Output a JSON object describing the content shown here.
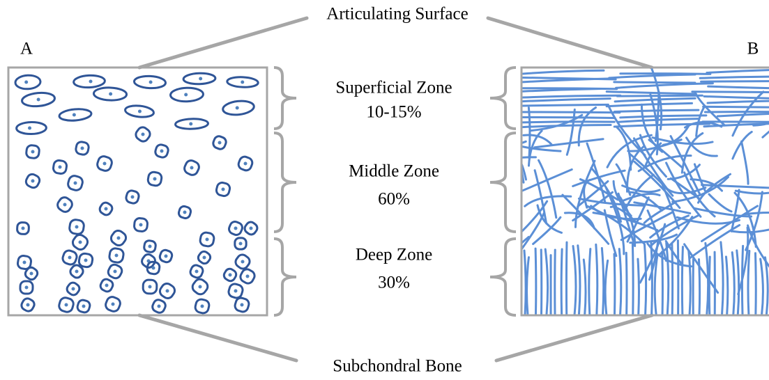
{
  "title": "Articulating Surface",
  "panels": {
    "left": "A",
    "right": "B"
  },
  "zones": [
    {
      "name": "Superficial Zone",
      "share": "10-15%"
    },
    {
      "name": "Middle Zone",
      "share": "60%"
    },
    {
      "name": "Deep Zone",
      "share": "30%"
    }
  ],
  "bottom": "Subchondral Bone"
}
